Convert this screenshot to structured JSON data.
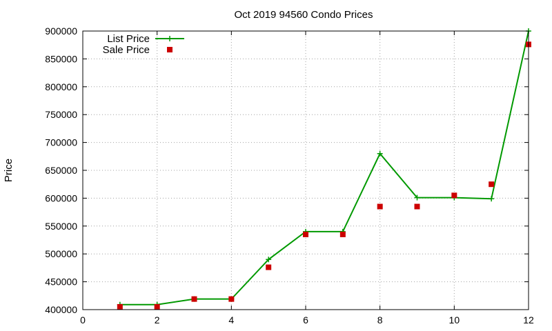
{
  "chart_data": {
    "type": "line",
    "title": "Oct 2019 94560 Condo Prices",
    "xlabel": "",
    "ylabel": "Price",
    "xlim": [
      0,
      12
    ],
    "ylim": [
      400000,
      900000
    ],
    "xticks": [
      0,
      2,
      4,
      6,
      8,
      10,
      12
    ],
    "yticks": [
      400000,
      450000,
      500000,
      550000,
      600000,
      650000,
      700000,
      750000,
      800000,
      850000,
      900000
    ],
    "xtick_labels": [
      "0",
      "2",
      "4",
      "6",
      "8",
      "10",
      "12"
    ],
    "ytick_labels": [
      "400000",
      "450000",
      "500000",
      "550000",
      "600000",
      "650000",
      "700000",
      "750000",
      "800000",
      "850000",
      "900000"
    ],
    "grid": true,
    "legend_position": "top-left",
    "series": [
      {
        "name": "List Price",
        "style": "line with plus markers",
        "color": "#009900",
        "x": [
          1,
          2,
          3,
          4,
          5,
          6,
          7,
          8,
          9,
          10,
          11,
          12
        ],
        "y": [
          409000,
          409000,
          419000,
          419000,
          490000,
          540000,
          540000,
          680000,
          601000,
          601000,
          599000,
          900000
        ]
      },
      {
        "name": "Sale Price",
        "style": "square markers",
        "color": "#cc0000",
        "x": [
          1,
          2,
          3,
          4,
          5,
          6,
          7,
          8,
          9,
          10,
          11,
          12
        ],
        "y": [
          405000,
          405000,
          419000,
          419000,
          476000,
          535000,
          535000,
          585000,
          585000,
          605000,
          625000,
          876000
        ]
      }
    ]
  }
}
